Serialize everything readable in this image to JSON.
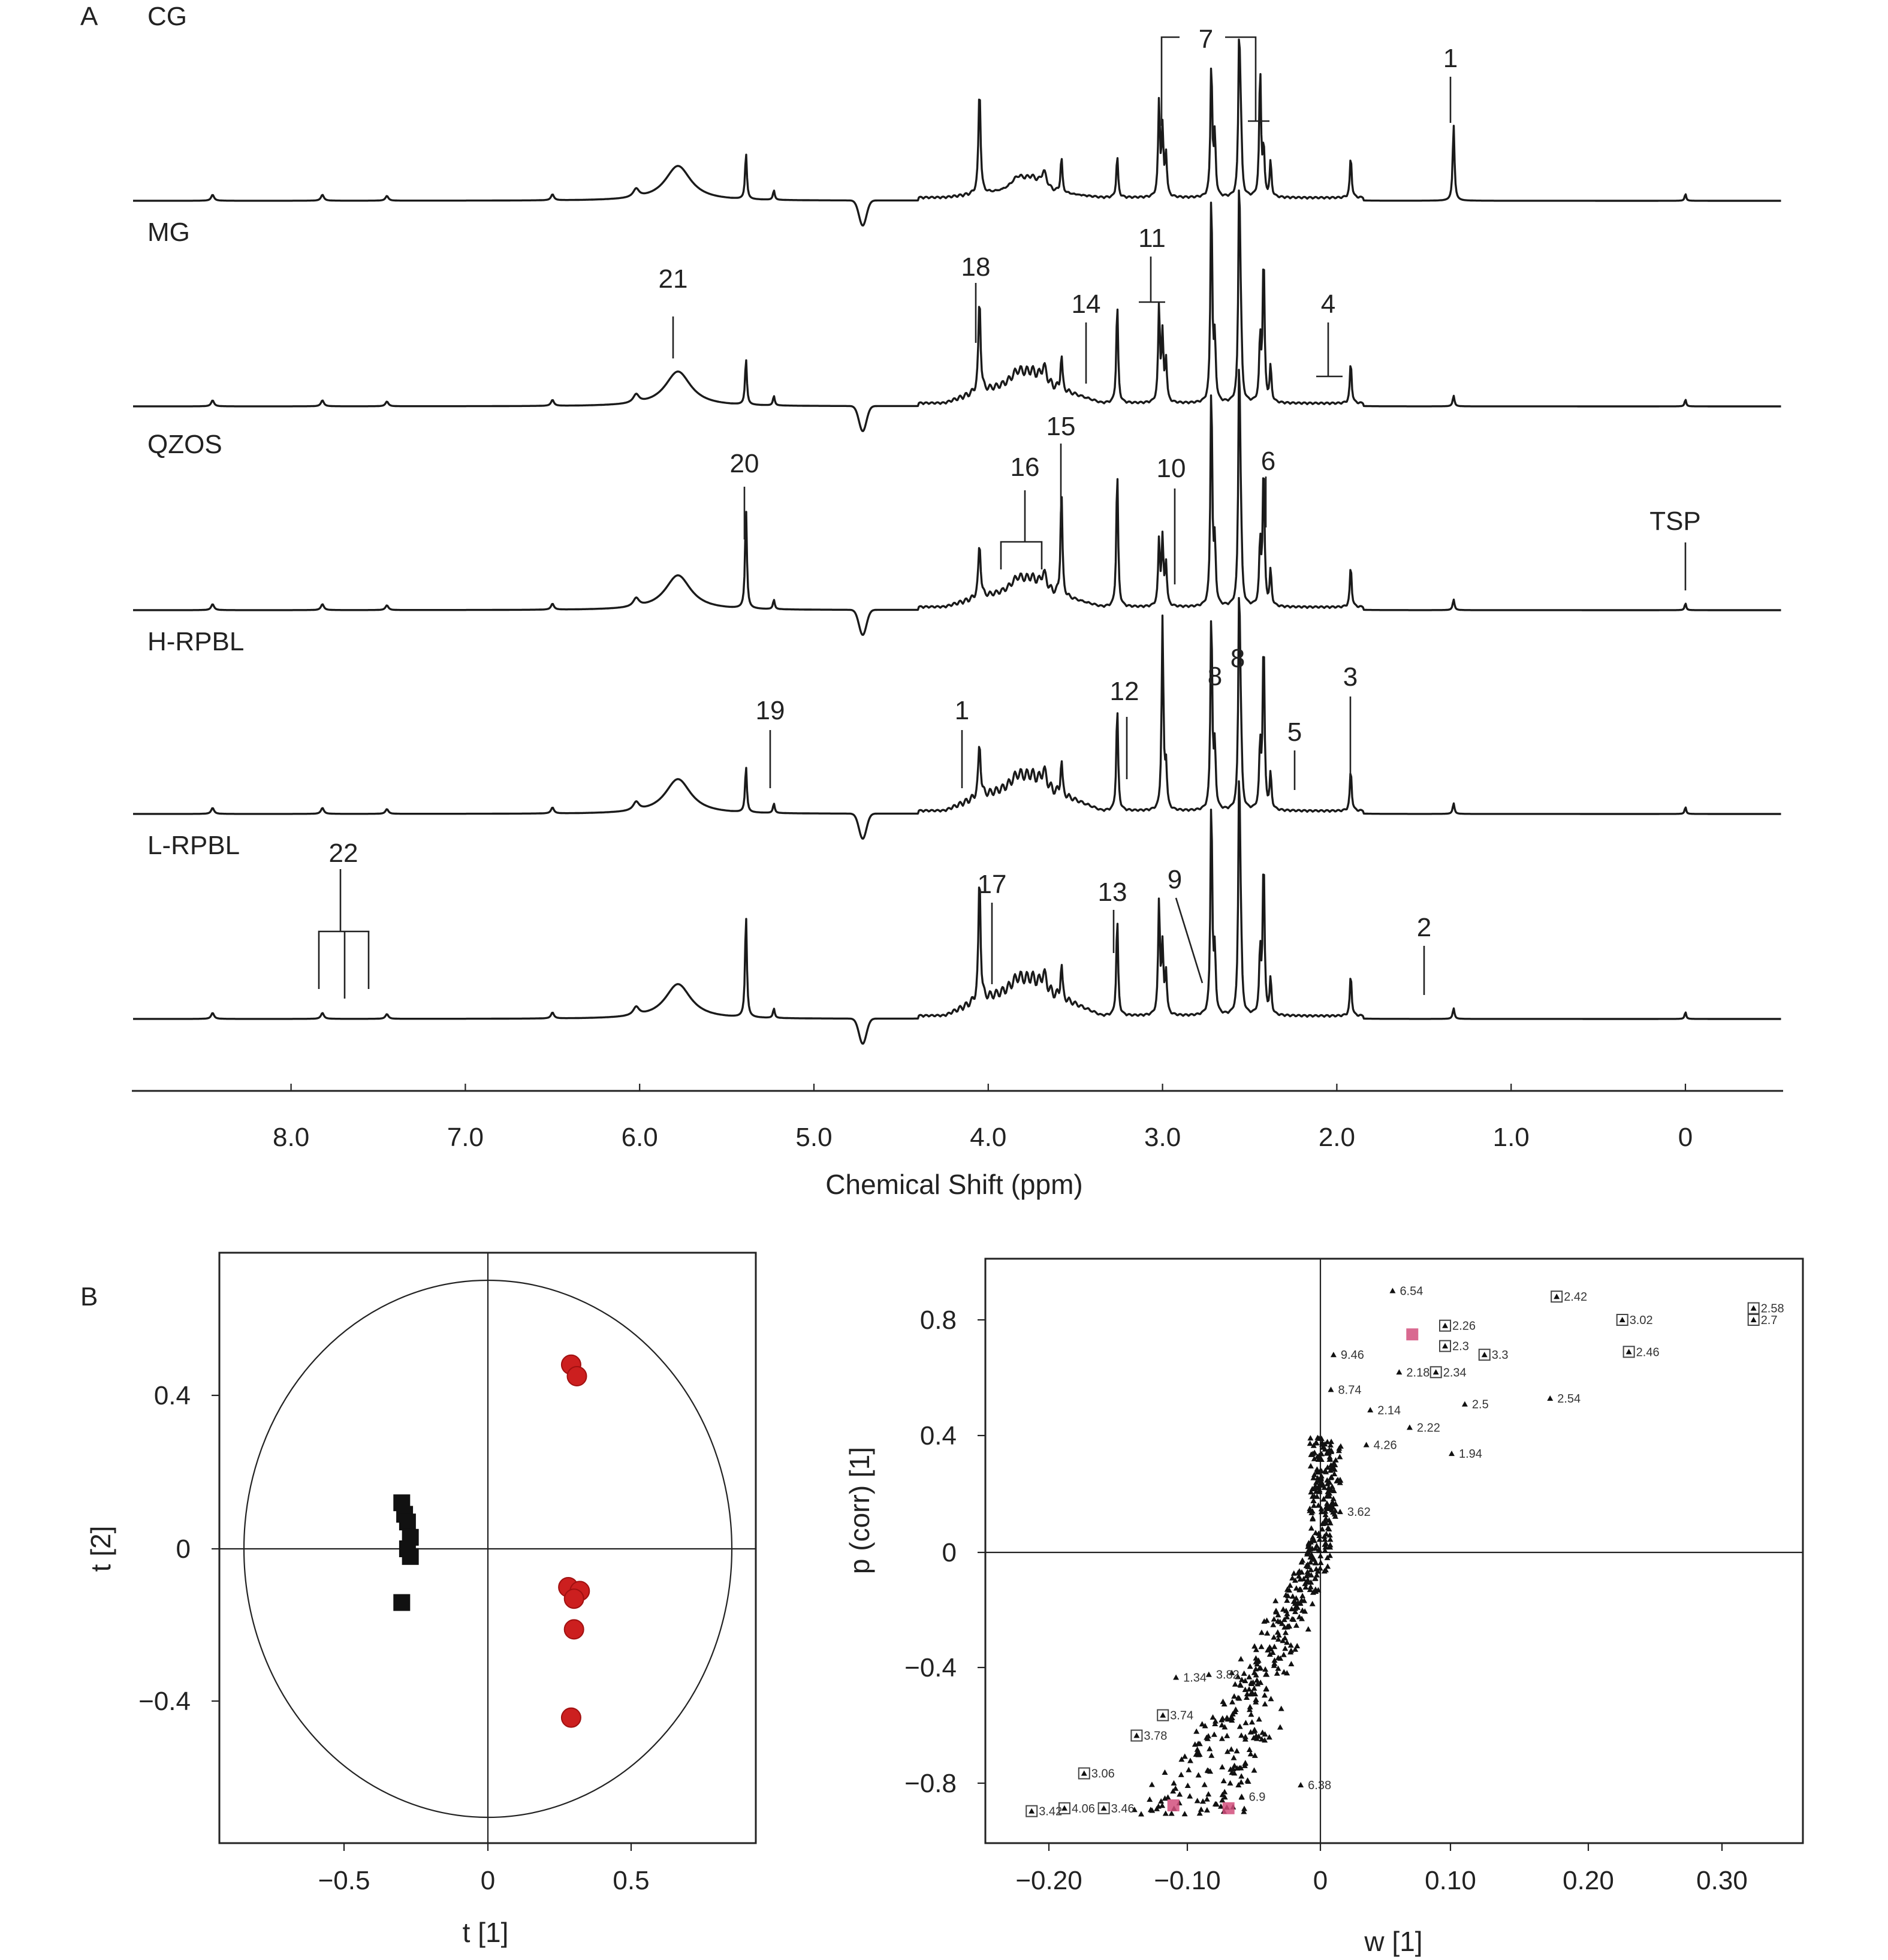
{
  "panel_a": {
    "label": "A",
    "xlabel": "Chemical Shift (ppm)",
    "xticks": [
      "8.0",
      "7.0",
      "6.0",
      "5.0",
      "4.0",
      "3.0",
      "2.0",
      "1.0",
      "0"
    ]
  },
  "panel_b": {
    "label": "B"
  },
  "chart_data": [
    {
      "type": "line",
      "title": "",
      "xlabel": "Chemical Shift (ppm)",
      "ylabel": "",
      "xlim": [
        8.9,
        -0.55
      ],
      "reversed_x": true,
      "x_ticks": [
        8.0,
        7.0,
        6.0,
        5.0,
        4.0,
        3.0,
        2.0,
        1.0,
        0
      ],
      "series": [
        {
          "name": "CG",
          "label": "CG"
        },
        {
          "name": "MG",
          "label": "MG"
        },
        {
          "name": "QZOS",
          "label": "QZOS"
        },
        {
          "name": "H-RPBL",
          "label": "H-RPBL"
        },
        {
          "name": "L-RPBL",
          "label": "L-RPBL"
        }
      ],
      "peak_annotations": [
        {
          "trace": "CG",
          "label": "7",
          "ppm": [
            3.0,
            2.45
          ]
        },
        {
          "trace": "CG",
          "label": "1",
          "ppm": 1.33
        },
        {
          "trace": "MG",
          "label": "21",
          "ppm": 5.78
        },
        {
          "trace": "MG",
          "label": "18",
          "ppm": 4.06
        },
        {
          "trace": "MG",
          "label": "14",
          "ppm": 3.43
        },
        {
          "trace": "MG",
          "label": "11",
          "ppm": 3.03
        },
        {
          "trace": "MG",
          "label": "4",
          "ppm": 2.05
        },
        {
          "trace": "QZOS",
          "label": "20",
          "ppm": 5.39
        },
        {
          "trace": "QZOS",
          "label": "16",
          "ppm": [
            3.92,
            3.7
          ]
        },
        {
          "trace": "QZOS",
          "label": "15",
          "ppm": 3.57
        },
        {
          "trace": "QZOS",
          "label": "10",
          "ppm": 2.93
        },
        {
          "trace": "QZOS",
          "label": "6",
          "ppm": 2.42
        },
        {
          "trace": "QZOS",
          "label": "TSP",
          "ppm": 0.0
        },
        {
          "trace": "H-RPBL",
          "label": "19",
          "ppm": 5.23
        },
        {
          "trace": "H-RPBL",
          "label": "1",
          "ppm": 4.13
        },
        {
          "trace": "H-RPBL",
          "label": "12",
          "ppm": 3.21
        },
        {
          "trace": "H-RPBL",
          "label": "8",
          "ppm": [
            2.71,
            2.56
          ]
        },
        {
          "trace": "H-RPBL",
          "label": "5",
          "ppm": 2.24
        },
        {
          "trace": "H-RPBL",
          "label": "3",
          "ppm": 1.92
        },
        {
          "trace": "L-RPBL",
          "label": "22",
          "ppm": [
            7.83,
            7.67,
            7.55
          ]
        },
        {
          "trace": "L-RPBL",
          "label": "17",
          "ppm": 3.98
        },
        {
          "trace": "L-RPBL",
          "label": "13",
          "ppm": 3.26
        },
        {
          "trace": "L-RPBL",
          "label": "9",
          "ppm": 2.77
        },
        {
          "trace": "L-RPBL",
          "label": "2",
          "ppm": 1.48
        }
      ]
    },
    {
      "type": "scatter",
      "title": "",
      "xlabel": "t [1]",
      "ylabel": "t [2]",
      "xlim": [
        -0.94,
        0.94
      ],
      "ylim": [
        -0.77,
        0.77
      ],
      "x_ticks": [
        "−0.5",
        "0",
        "0.5"
      ],
      "y_ticks": [
        "0.4",
        "0",
        "−0.4"
      ],
      "ellipse_radius": [
        0.85,
        0.7
      ],
      "series": [
        {
          "color": "#111111",
          "marker": "square",
          "x": [
            -0.3,
            -0.29,
            -0.28,
            -0.27,
            -0.28,
            -0.27,
            -0.3
          ],
          "y": [
            0.12,
            0.09,
            0.07,
            0.03,
            0.0,
            -0.02,
            -0.14
          ]
        },
        {
          "color": "#cc1f1f",
          "marker": "circle",
          "x": [
            0.29,
            0.31,
            0.28,
            0.32,
            0.3,
            0.3,
            0.29
          ],
          "y": [
            0.48,
            0.45,
            -0.1,
            -0.11,
            -0.13,
            -0.21,
            -0.44
          ]
        }
      ]
    },
    {
      "type": "scatter",
      "title": "",
      "xlabel": "w [1]",
      "ylabel": "p (corr) [1]",
      "xlim": [
        -0.25,
        0.36
      ],
      "ylim": [
        -1.0,
        1.0
      ],
      "x_ticks": [
        "−0.20",
        "−0.10",
        "0",
        "0.10",
        "0.20",
        "0.30"
      ],
      "y_ticks": [
        "0.8",
        "0.4",
        "0",
        "−0.4",
        "−0.8"
      ],
      "labeled_points": [
        {
          "label": "6.54",
          "x": 0.055,
          "y": 0.9,
          "boxed": false
        },
        {
          "label": "2.42",
          "x": 0.18,
          "y": 0.88,
          "boxed": true
        },
        {
          "label": "2.58",
          "x": 0.33,
          "y": 0.84,
          "boxed": true
        },
        {
          "label": "2.7",
          "x": 0.33,
          "y": 0.8,
          "boxed": true
        },
        {
          "label": "3.02",
          "x": 0.23,
          "y": 0.8,
          "boxed": true
        },
        {
          "label": "2.26",
          "x": 0.095,
          "y": 0.78,
          "boxed": true
        },
        {
          "label": "3.3",
          "x": 0.125,
          "y": 0.68,
          "boxed": true
        },
        {
          "label": "2.3",
          "x": 0.095,
          "y": 0.71,
          "boxed": true
        },
        {
          "label": "2.46",
          "x": 0.235,
          "y": 0.69,
          "boxed": true
        },
        {
          "label": "9.46",
          "x": 0.01,
          "y": 0.68,
          "boxed": false
        },
        {
          "label": "2.18",
          "x": 0.06,
          "y": 0.62,
          "boxed": false
        },
        {
          "label": "2.34",
          "x": 0.088,
          "y": 0.62,
          "boxed": true
        },
        {
          "label": "2.5",
          "x": 0.11,
          "y": 0.51,
          "boxed": false
        },
        {
          "label": "2.54",
          "x": 0.175,
          "y": 0.53,
          "boxed": false
        },
        {
          "label": "8.74",
          "x": 0.008,
          "y": 0.56,
          "boxed": false
        },
        {
          "label": "2.14",
          "x": 0.038,
          "y": 0.49,
          "boxed": false
        },
        {
          "label": "2.22",
          "x": 0.068,
          "y": 0.43,
          "boxed": false
        },
        {
          "label": "1.94",
          "x": 0.1,
          "y": 0.34,
          "boxed": false
        },
        {
          "label": "4.26",
          "x": 0.035,
          "y": 0.37,
          "boxed": false
        },
        {
          "label": "3.62",
          "x": 0.015,
          "y": 0.14,
          "boxed": false
        },
        {
          "label": "1.34",
          "x": -0.11,
          "y": -0.43,
          "boxed": false
        },
        {
          "label": "3.82",
          "x": -0.085,
          "y": -0.42,
          "boxed": false
        },
        {
          "label": "3.74",
          "x": -0.12,
          "y": -0.56,
          "boxed": true
        },
        {
          "label": "3.78",
          "x": -0.14,
          "y": -0.63,
          "boxed": true
        },
        {
          "label": "3.06",
          "x": -0.18,
          "y": -0.76,
          "boxed": true
        },
        {
          "label": "3.42",
          "x": -0.22,
          "y": -0.89,
          "boxed": true
        },
        {
          "label": "4.06",
          "x": -0.195,
          "y": -0.88,
          "boxed": true
        },
        {
          "label": "3.46",
          "x": -0.165,
          "y": -0.88,
          "boxed": true
        },
        {
          "label": "6.38",
          "x": -0.015,
          "y": -0.8,
          "boxed": false
        },
        {
          "label": "6.9",
          "x": -0.06,
          "y": -0.84,
          "boxed": false
        }
      ]
    }
  ]
}
